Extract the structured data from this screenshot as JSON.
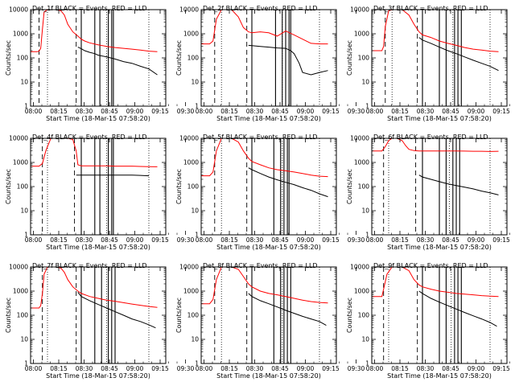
{
  "figure": {
    "colors": {
      "events": "#000000",
      "lld": "#ff0000",
      "axes": "#000000",
      "background": "#ffffff"
    }
  },
  "chart_data": [
    {
      "type": "line",
      "title": "Det_1f BLACK = Events, RED = LLD",
      "xlabel": "Start Time (18-Mar-15 07:58:20)",
      "ylabel": "Counts/sec",
      "x_tick_labels": [
        "08:00",
        "08:15",
        "08:30",
        "08:45",
        "09:00",
        "09:15",
        "09:30"
      ],
      "y_tick_labels": [
        "1",
        "10",
        "100",
        "1000",
        "10000"
      ],
      "ylim": [
        1,
        10000
      ],
      "yscale": "log",
      "xlim_minutes": [
        0,
        80
      ],
      "series": [
        {
          "name": "LLD",
          "color": "#ff0000",
          "x": [
            0,
            4,
            5,
            6,
            7,
            8,
            10,
            12,
            15,
            18,
            20,
            22,
            25,
            28,
            30,
            32,
            35,
            40,
            45,
            50,
            55,
            60,
            65,
            70,
            75
          ],
          "y": [
            180,
            180,
            190,
            250,
            1500,
            8000,
            10000,
            10000,
            10000,
            9000,
            6000,
            2500,
            1200,
            800,
            600,
            500,
            420,
            350,
            300,
            270,
            250,
            230,
            210,
            190,
            180
          ]
        },
        {
          "name": "Events",
          "color": "#000000",
          "x": [
            28,
            30,
            32,
            35,
            38,
            40,
            45,
            50,
            55,
            60,
            65,
            70,
            75
          ],
          "y": [
            280,
            240,
            200,
            170,
            150,
            130,
            110,
            90,
            70,
            60,
            45,
            35,
            20
          ]
        }
      ],
      "solid_vlines_minutes": [
        30,
        38,
        41,
        46,
        48,
        49
      ],
      "dashed_vlines_minutes": [
        5,
        27
      ],
      "dotted_vlines_minutes": [
        10,
        45,
        70
      ]
    },
    {
      "type": "line",
      "title": "Det_2f BLACK = Events, RED = LLD",
      "xlabel": "Start Time (18-Mar-15 07:58:20)",
      "ylabel": "Counts/sec",
      "x_tick_labels": [
        "08:00",
        "08:15",
        "08:30",
        "08:45",
        "09:00",
        "09:15",
        "09:30"
      ],
      "y_tick_labels": [
        "1",
        "10",
        "100",
        "1000",
        "10000"
      ],
      "ylim": [
        1,
        10000
      ],
      "yscale": "log",
      "xlim_minutes": [
        0,
        80
      ],
      "series": [
        {
          "name": "LLD",
          "color": "#ff0000",
          "x": [
            0,
            5,
            7,
            9,
            12,
            15,
            18,
            22,
            25,
            28,
            30,
            35,
            40,
            45,
            50,
            55,
            60,
            65,
            70,
            75
          ],
          "y": [
            380,
            380,
            500,
            4000,
            10000,
            10000,
            10000,
            5000,
            1800,
            1200,
            1100,
            1200,
            1100,
            800,
            1300,
            900,
            600,
            400,
            380,
            380
          ]
        },
        {
          "name": "Events",
          "color": "#000000",
          "x": [
            28,
            30,
            35,
            40,
            45,
            50,
            53,
            55,
            58,
            60,
            65,
            70,
            75
          ],
          "y": [
            330,
            320,
            300,
            280,
            260,
            250,
            200,
            150,
            60,
            25,
            20,
            25,
            30
          ]
        }
      ],
      "solid_vlines_minutes": [
        30,
        44,
        48,
        50,
        52,
        53
      ],
      "dashed_vlines_minutes": [
        8,
        27
      ],
      "dotted_vlines_minutes": [
        12,
        48,
        70
      ]
    },
    {
      "type": "line",
      "title": "Det_3f BLACK = Events, RED = LLD",
      "xlabel": "Start Time (18-Mar-15 07:58:20)",
      "ylabel": "Counts/sec",
      "x_tick_labels": [
        "08:00",
        "08:15",
        "08:30",
        "08:45",
        "09:00",
        "09:15",
        "09:30"
      ],
      "y_tick_labels": [
        "1",
        "10",
        "100",
        "1000",
        "10000"
      ],
      "ylim": [
        1,
        10000
      ],
      "yscale": "log",
      "xlim_minutes": [
        0,
        80
      ],
      "series": [
        {
          "name": "LLD",
          "color": "#ff0000",
          "x": [
            0,
            6,
            7,
            8,
            10,
            12,
            15,
            18,
            22,
            25,
            28,
            30,
            35,
            40,
            45,
            50,
            55,
            60,
            65,
            70,
            75
          ],
          "y": [
            200,
            200,
            300,
            2000,
            9000,
            10000,
            10000,
            10000,
            6000,
            2500,
            1200,
            900,
            700,
            500,
            400,
            330,
            270,
            230,
            210,
            190,
            180
          ]
        },
        {
          "name": "Events",
          "color": "#000000",
          "x": [
            28,
            30,
            35,
            40,
            45,
            50,
            55,
            60,
            65,
            70,
            75
          ],
          "y": [
            700,
            550,
            400,
            280,
            200,
            150,
            110,
            80,
            60,
            45,
            30
          ]
        }
      ],
      "solid_vlines_minutes": [
        30,
        40,
        44,
        49,
        51,
        53
      ],
      "dashed_vlines_minutes": [
        8,
        27
      ],
      "dotted_vlines_minutes": [
        12,
        48,
        70
      ]
    },
    {
      "type": "line",
      "title": "Det_4f BLACK = Events, RED = LLD",
      "xlabel": "Start Time (18-Mar-15 07:58:20)",
      "ylabel": "Counts/sec",
      "x_tick_labels": [
        "08:00",
        "08:15",
        "08:30",
        "08:45",
        "09:00",
        "09:15",
        "09:30"
      ],
      "y_tick_labels": [
        "1",
        "10",
        "100",
        "1000",
        "10000"
      ],
      "ylim": [
        1,
        10000
      ],
      "yscale": "log",
      "xlim_minutes": [
        0,
        80
      ],
      "series": [
        {
          "name": "LLD",
          "color": "#ff0000",
          "x": [
            0,
            5,
            7,
            9,
            12,
            15,
            18,
            22,
            25,
            27,
            28,
            30,
            35,
            40,
            45,
            50,
            55,
            60,
            65,
            70,
            75
          ],
          "y": [
            700,
            700,
            900,
            3000,
            10000,
            10000,
            10000,
            10000,
            9000,
            3000,
            800,
            720,
            720,
            720,
            720,
            700,
            700,
            700,
            680,
            670,
            660
          ]
        },
        {
          "name": "Events",
          "color": "#000000",
          "x": [
            27,
            30,
            35,
            40,
            45,
            50,
            55,
            60,
            65,
            70
          ],
          "y": [
            300,
            300,
            300,
            300,
            300,
            300,
            300,
            300,
            290,
            280
          ]
        }
      ],
      "solid_vlines_minutes": [
        30,
        38,
        41,
        46,
        48,
        49
      ],
      "dashed_vlines_minutes": [
        7,
        26
      ],
      "dotted_vlines_minutes": [
        10,
        45,
        70
      ]
    },
    {
      "type": "line",
      "title": "Det_5f BLACK = Events, RED = LLD",
      "xlabel": "Start Time (18-Mar-15 07:58:20)",
      "ylabel": "Counts/sec",
      "x_tick_labels": [
        "08:00",
        "08:15",
        "08:30",
        "08:45",
        "09:00",
        "09:15",
        "09:30"
      ],
      "y_tick_labels": [
        "1",
        "10",
        "100",
        "1000",
        "10000"
      ],
      "ylim": [
        1,
        10000
      ],
      "yscale": "log",
      "xlim_minutes": [
        0,
        80
      ],
      "series": [
        {
          "name": "LLD",
          "color": "#ff0000",
          "x": [
            0,
            5,
            7,
            9,
            12,
            15,
            18,
            22,
            25,
            28,
            30,
            35,
            40,
            45,
            50,
            55,
            60,
            65,
            70,
            75
          ],
          "y": [
            280,
            280,
            400,
            3000,
            10000,
            10000,
            10000,
            7000,
            3000,
            1500,
            1100,
            800,
            600,
            500,
            450,
            400,
            350,
            300,
            270,
            260
          ]
        },
        {
          "name": "Events",
          "color": "#000000",
          "x": [
            28,
            30,
            35,
            40,
            45,
            50,
            55,
            60,
            65,
            70,
            75
          ],
          "y": [
            600,
            500,
            350,
            250,
            190,
            150,
            120,
            90,
            70,
            50,
            38
          ]
        }
      ],
      "solid_vlines_minutes": [
        30,
        43,
        47,
        49,
        51,
        52
      ],
      "dashed_vlines_minutes": [
        8,
        27
      ],
      "dotted_vlines_minutes": [
        12,
        48,
        70
      ]
    },
    {
      "type": "line",
      "title": "Det_6f BLACK = Events, RED = LLD",
      "xlabel": "Start Time (18-Mar-15 07:58:20)",
      "ylabel": "Counts/sec",
      "x_tick_labels": [
        "08:00",
        "08:15",
        "08:30",
        "08:45",
        "09:00",
        "09:15",
        "09:30"
      ],
      "y_tick_labels": [
        "1",
        "10",
        "100",
        "1000",
        "10000"
      ],
      "ylim": [
        1,
        10000
      ],
      "yscale": "log",
      "xlim_minutes": [
        0,
        80
      ],
      "series": [
        {
          "name": "LLD",
          "color": "#ff0000",
          "x": [
            0,
            6,
            8,
            10,
            12,
            15,
            18,
            20,
            22,
            25,
            28,
            30,
            35,
            40,
            45,
            50,
            55,
            60,
            65,
            70,
            75
          ],
          "y": [
            3000,
            3000,
            4500,
            8000,
            10000,
            10000,
            8000,
            5000,
            3500,
            3100,
            3000,
            3000,
            3000,
            3000,
            3000,
            3000,
            2950,
            2900,
            2900,
            2850,
            2900
          ]
        },
        {
          "name": "Events",
          "color": "#000000",
          "x": [
            28,
            30,
            35,
            40,
            45,
            50,
            55,
            60,
            65,
            70,
            75
          ],
          "y": [
            300,
            250,
            200,
            160,
            130,
            110,
            95,
            80,
            65,
            55,
            45
          ]
        }
      ],
      "solid_vlines_minutes": [
        30,
        40,
        44,
        48,
        50,
        52
      ],
      "dashed_vlines_minutes": [
        7,
        26
      ],
      "dotted_vlines_minutes": [
        10,
        46,
        70
      ]
    },
    {
      "type": "line",
      "title": "Det_7f BLACK = Events, RED = LLD",
      "xlabel": "Start Time (18-Mar-15 07:58:20)",
      "ylabel": "Counts/sec",
      "x_tick_labels": [
        "08:00",
        "08:15",
        "08:30",
        "08:45",
        "09:00",
        "09:15",
        "09:30"
      ],
      "y_tick_labels": [
        "1",
        "10",
        "100",
        "1000",
        "10000"
      ],
      "ylim": [
        1,
        10000
      ],
      "yscale": "log",
      "xlim_minutes": [
        0,
        80
      ],
      "series": [
        {
          "name": "LLD",
          "color": "#ff0000",
          "x": [
            0,
            5,
            6,
            7,
            8,
            10,
            12,
            15,
            18,
            20,
            22,
            25,
            28,
            30,
            35,
            40,
            45,
            50,
            55,
            60,
            65,
            70,
            75
          ],
          "y": [
            200,
            200,
            250,
            800,
            5000,
            10000,
            10000,
            10000,
            9000,
            6000,
            3000,
            1500,
            1000,
            800,
            600,
            500,
            420,
            380,
            330,
            290,
            260,
            230,
            210
          ]
        },
        {
          "name": "Events",
          "color": "#000000",
          "x": [
            28,
            30,
            35,
            40,
            45,
            50,
            55,
            60,
            65,
            70,
            74
          ],
          "y": [
            900,
            600,
            400,
            280,
            200,
            140,
            100,
            70,
            55,
            40,
            30
          ]
        }
      ],
      "solid_vlines_minutes": [
        30,
        38,
        42,
        46,
        48,
        50
      ],
      "dashed_vlines_minutes": [
        7,
        27
      ],
      "dotted_vlines_minutes": [
        10,
        45,
        70
      ]
    },
    {
      "type": "line",
      "title": "Det_8f BLACK = Events, RED = LLD",
      "xlabel": "Start Time (18-Mar-15 07:58:20)",
      "ylabel": "Counts/sec",
      "x_tick_labels": [
        "08:00",
        "08:15",
        "08:30",
        "08:45",
        "09:00",
        "09:15",
        "09:30"
      ],
      "y_tick_labels": [
        "1",
        "10",
        "100",
        "1000",
        "10000"
      ],
      "ylim": [
        1,
        10000
      ],
      "yscale": "log",
      "xlim_minutes": [
        0,
        80
      ],
      "series": [
        {
          "name": "LLD",
          "color": "#ff0000",
          "x": [
            0,
            5,
            7,
            9,
            12,
            15,
            18,
            22,
            25,
            28,
            30,
            35,
            40,
            45,
            50,
            55,
            60,
            65,
            70,
            75
          ],
          "y": [
            300,
            300,
            450,
            3000,
            10000,
            10000,
            10000,
            8000,
            4000,
            2000,
            1500,
            1000,
            800,
            700,
            600,
            500,
            420,
            370,
            340,
            320
          ]
        },
        {
          "name": "Events",
          "color": "#000000",
          "x": [
            28,
            30,
            35,
            40,
            45,
            50,
            55,
            60,
            65,
            70,
            74
          ],
          "y": [
            800,
            600,
            400,
            300,
            220,
            160,
            120,
            90,
            70,
            55,
            38
          ]
        }
      ],
      "solid_vlines_minutes": [
        30,
        43,
        47,
        49,
        51,
        53
      ],
      "dashed_vlines_minutes": [
        8,
        27
      ],
      "dotted_vlines_minutes": [
        12,
        48,
        70
      ]
    },
    {
      "type": "line",
      "title": "Det_9f BLACK = Events, RED = LLD",
      "xlabel": "Start Time (18-Mar-15 07:58:20)",
      "ylabel": "Counts/sec",
      "x_tick_labels": [
        "08:00",
        "08:15",
        "08:30",
        "08:45",
        "09:00",
        "09:15",
        "09:30"
      ],
      "y_tick_labels": [
        "1",
        "10",
        "100",
        "1000",
        "10000"
      ],
      "ylim": [
        1,
        10000
      ],
      "yscale": "log",
      "xlim_minutes": [
        0,
        80
      ],
      "series": [
        {
          "name": "LLD",
          "color": "#ff0000",
          "x": [
            0,
            6,
            7,
            9,
            12,
            15,
            18,
            22,
            25,
            28,
            30,
            35,
            40,
            45,
            50,
            55,
            60,
            65,
            70,
            75
          ],
          "y": [
            600,
            600,
            1200,
            5000,
            10000,
            10000,
            10000,
            7000,
            3000,
            1800,
            1500,
            1200,
            1000,
            900,
            800,
            750,
            700,
            650,
            620,
            600
          ]
        },
        {
          "name": "Events",
          "color": "#000000",
          "x": [
            28,
            30,
            35,
            40,
            45,
            50,
            55,
            60,
            65,
            70,
            74
          ],
          "y": [
            1000,
            800,
            500,
            350,
            250,
            180,
            130,
            95,
            70,
            50,
            35
          ]
        }
      ],
      "solid_vlines_minutes": [
        30,
        40,
        44,
        49,
        51,
        53
      ],
      "dashed_vlines_minutes": [
        7,
        27
      ],
      "dotted_vlines_minutes": [
        10,
        47,
        70
      ]
    }
  ]
}
